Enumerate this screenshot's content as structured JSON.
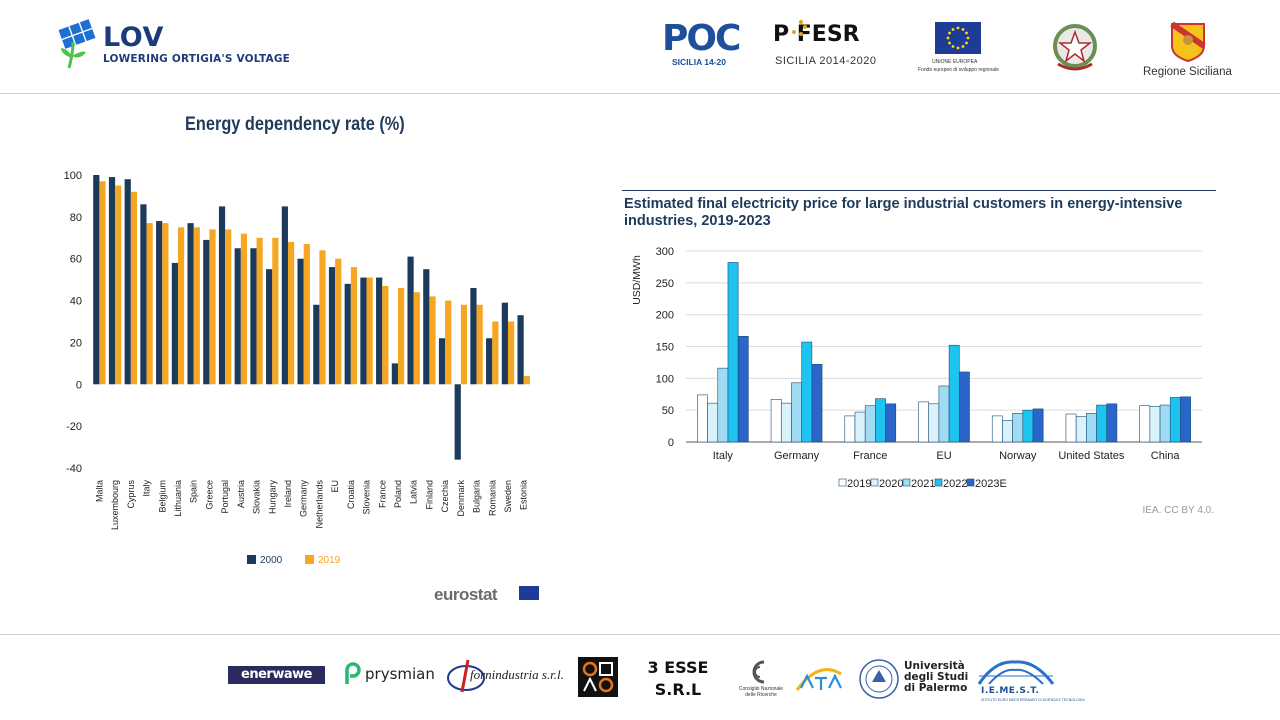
{
  "header": {
    "lov_title": "LOV",
    "lov_subtitle": "LOWERING ORTIGIA'S VOLTAGE",
    "poc": {
      "name": "POC",
      "sub": "SICILIA 14-20"
    },
    "fesr": {
      "name": "P   FESR",
      "sub": "SICILIA 2014-2020"
    },
    "eu": {
      "sub1": "UNIONE EUROPEA",
      "sub2": "Fondo europeo di sviluppo regionale"
    },
    "sicily": {
      "label": "Regione Siciliana"
    }
  },
  "colors": {
    "navy": "#1b3a5c",
    "orange": "#f5a623",
    "c2019": "#ffffff",
    "c2020": "#d9f2fb",
    "c2021": "#9fdcf3",
    "c2022": "#1ec3ef",
    "c2023": "#2a66c9"
  },
  "left_chart_title": "Energy dependency rate (%)",
  "left_chart_source": "eurostat",
  "right_chart_title": "Estimated final electricity price for large industrial customers in energy-intensive industries, 2019-2023",
  "right_chart_source": "IEA. CC BY 4.0.",
  "chart_data": [
    {
      "type": "bar",
      "title": "Energy dependency rate (%)",
      "categories": [
        "Malta",
        "Luxembourg",
        "Cyprus",
        "Italy",
        "Belgium",
        "Lithuania",
        "Spain",
        "Greece",
        "Portugal",
        "Austria",
        "Slovakia",
        "Hungary",
        "Ireland",
        "Germany",
        "Netherlands",
        "EU",
        "Croatia",
        "Slovenia",
        "France",
        "Poland",
        "Latvia",
        "Finland",
        "Czechia",
        "Denmark",
        "Bulgaria",
        "Romania",
        "Sweden",
        "Estonia"
      ],
      "series": [
        {
          "name": "2000",
          "color": "#1b3a5c",
          "values": [
            100,
            99,
            98,
            86,
            78,
            58,
            77,
            69,
            85,
            65,
            65,
            55,
            85,
            60,
            38,
            56,
            48,
            51,
            51,
            10,
            61,
            55,
            22,
            -36,
            46,
            22,
            39,
            33
          ]
        },
        {
          "name": "2019",
          "color": "#f5a623",
          "values": [
            97,
            95,
            92,
            77,
            77,
            75,
            75,
            74,
            74,
            72,
            70,
            70,
            68,
            67,
            64,
            60,
            56,
            51,
            47,
            46,
            44,
            42,
            40,
            38,
            38,
            30,
            30,
            4
          ]
        }
      ],
      "yticks": [
        100,
        80,
        60,
        40,
        20,
        0,
        -20,
        -40
      ],
      "ylim": [
        -40,
        100
      ],
      "legend": "bottom"
    },
    {
      "type": "bar",
      "title": "Estimated final electricity price for large industrial customers in energy-intensive industries, 2019-2023",
      "ylabel": "USD/MWh",
      "categories": [
        "Italy",
        "Germany",
        "France",
        "EU",
        "Norway",
        "United States",
        "China"
      ],
      "series": [
        {
          "name": "2019",
          "color": "#ffffff",
          "values": [
            74,
            67,
            41,
            63,
            41,
            44,
            57
          ]
        },
        {
          "name": "2020",
          "color": "#d9f2fb",
          "values": [
            61,
            61,
            47,
            60,
            34,
            40,
            56
          ]
        },
        {
          "name": "2021",
          "color": "#9fdcf3",
          "values": [
            116,
            93,
            57,
            88,
            45,
            45,
            58
          ]
        },
        {
          "name": "2022",
          "color": "#1ec3ef",
          "values": [
            282,
            157,
            68,
            152,
            50,
            58,
            70
          ]
        },
        {
          "name": "2023E",
          "color": "#2a66c9",
          "values": [
            166,
            122,
            60,
            110,
            52,
            60,
            71
          ]
        }
      ],
      "yticks": [
        0,
        50,
        100,
        150,
        200,
        250,
        300
      ],
      "ylim": [
        0,
        300
      ],
      "grid": true,
      "legend": "bottom"
    }
  ],
  "footer": {
    "enerwave": "enerwawe",
    "prysmian": "prysmian",
    "fornindustria": "fornindustria s.r.l.",
    "esse_line1": "3 ESSE",
    "esse_line2": "S.R.L",
    "cnr": "Consiglio Nazionale delle Ricerche",
    "unipa_line1": "Università",
    "unipa_line2": "degli Studi",
    "unipa_line3": "di Palermo",
    "iemest": "I.E.ME.S.T.",
    "iemest_sub": "ISTITUTO EURO MEDITERRANEO DI SCIENZA E TECNOLOGIA"
  }
}
